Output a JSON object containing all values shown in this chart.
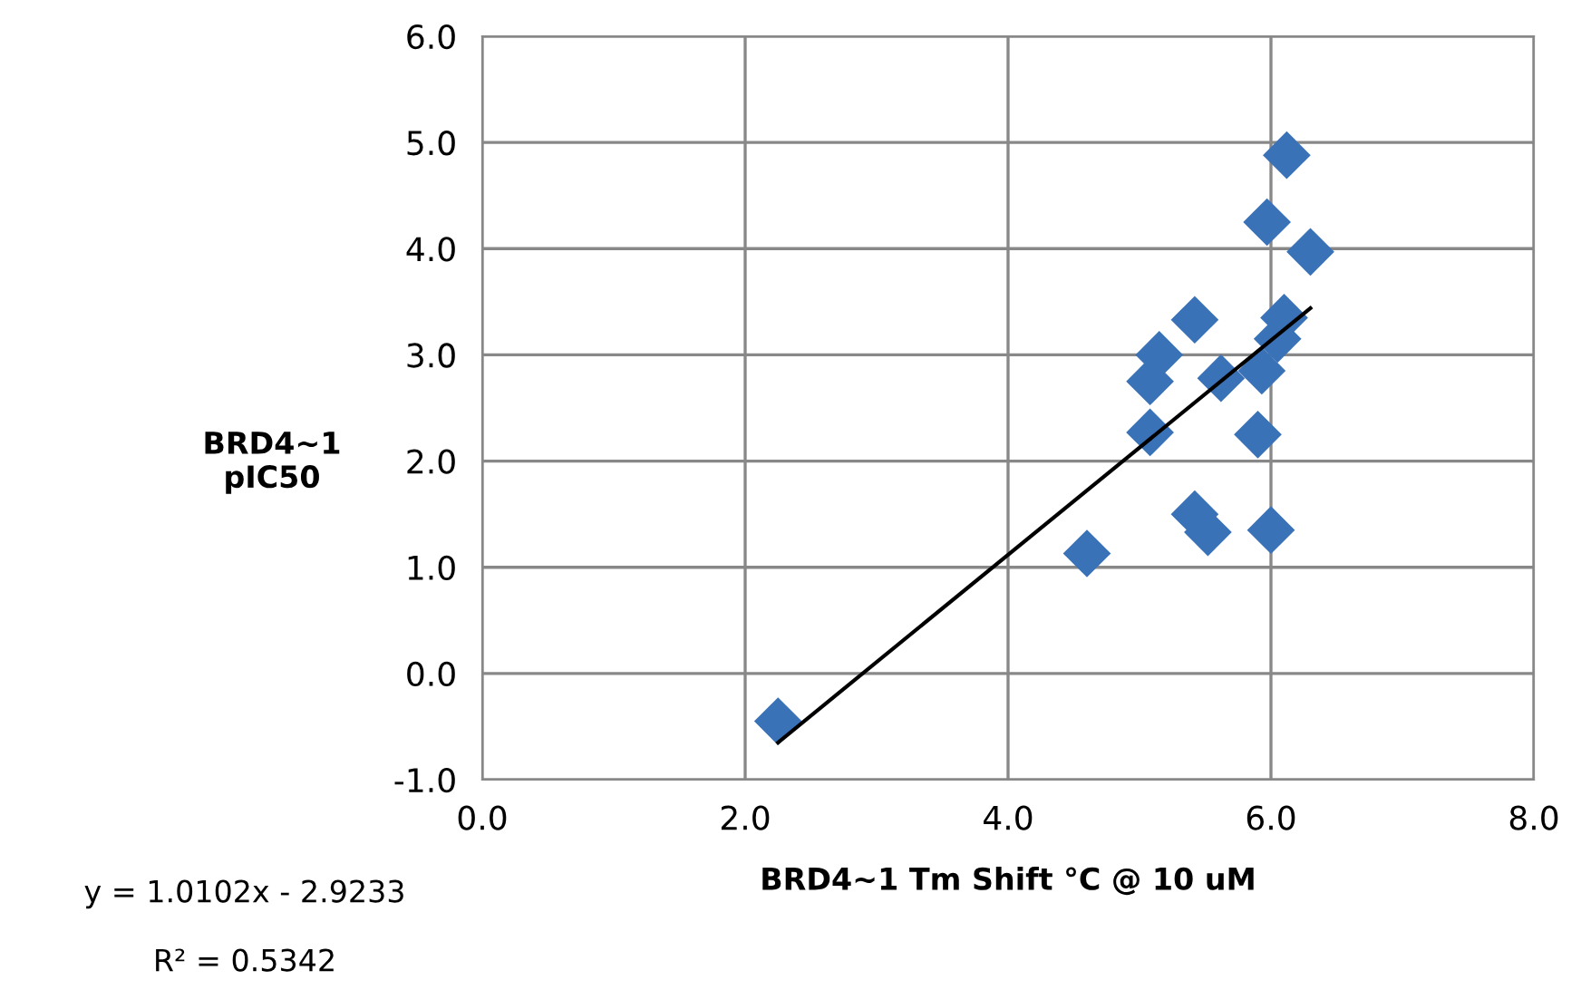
{
  "chart_data": {
    "type": "scatter",
    "xlabel": "BRD4~1 Tm Shift °C @ 10 uM",
    "ylabel": "BRD4~1\npIC50",
    "xlim": [
      0,
      8
    ],
    "xticks": [
      {
        "value": 0,
        "label": "0.0"
      },
      {
        "value": 2,
        "label": "2.0"
      },
      {
        "value": 4,
        "label": "4.0"
      },
      {
        "value": 6,
        "label": "6.0"
      },
      {
        "value": 8,
        "label": "8.0"
      }
    ],
    "ylim": [
      -1,
      6
    ],
    "yticks": [
      {
        "value": -1,
        "label": "-1.0"
      },
      {
        "value": 0,
        "label": "0.0"
      },
      {
        "value": 1,
        "label": "1.0"
      },
      {
        "value": 2,
        "label": "2.0"
      },
      {
        "value": 3,
        "label": "3.0"
      },
      {
        "value": 4,
        "label": "4.0"
      },
      {
        "value": 5,
        "label": "5.0"
      },
      {
        "value": 6,
        "label": "6.0"
      }
    ],
    "grid": true,
    "legend": false,
    "series": [
      {
        "marker": "diamond",
        "color": "#3a72b8",
        "x": [
          2.25,
          4.6,
          5.08,
          5.08,
          5.15,
          5.42,
          5.42,
          5.52,
          5.62,
          5.9,
          5.93,
          5.97,
          6.0,
          6.05,
          6.1,
          6.12,
          6.3
        ],
        "values": [
          -0.45,
          1.13,
          2.27,
          2.75,
          3.0,
          3.33,
          1.5,
          1.33,
          2.78,
          2.25,
          2.85,
          4.25,
          1.35,
          3.15,
          3.35,
          4.88,
          3.97
        ]
      },
      {
        "type": "line",
        "marker": "none",
        "color": "#000000",
        "x": [
          2.25,
          6.3
        ],
        "values": [
          -0.65,
          3.44
        ]
      }
    ],
    "annotations": [
      "y = 1.0102x - 2.9233",
      "R² = 0.5342"
    ]
  }
}
